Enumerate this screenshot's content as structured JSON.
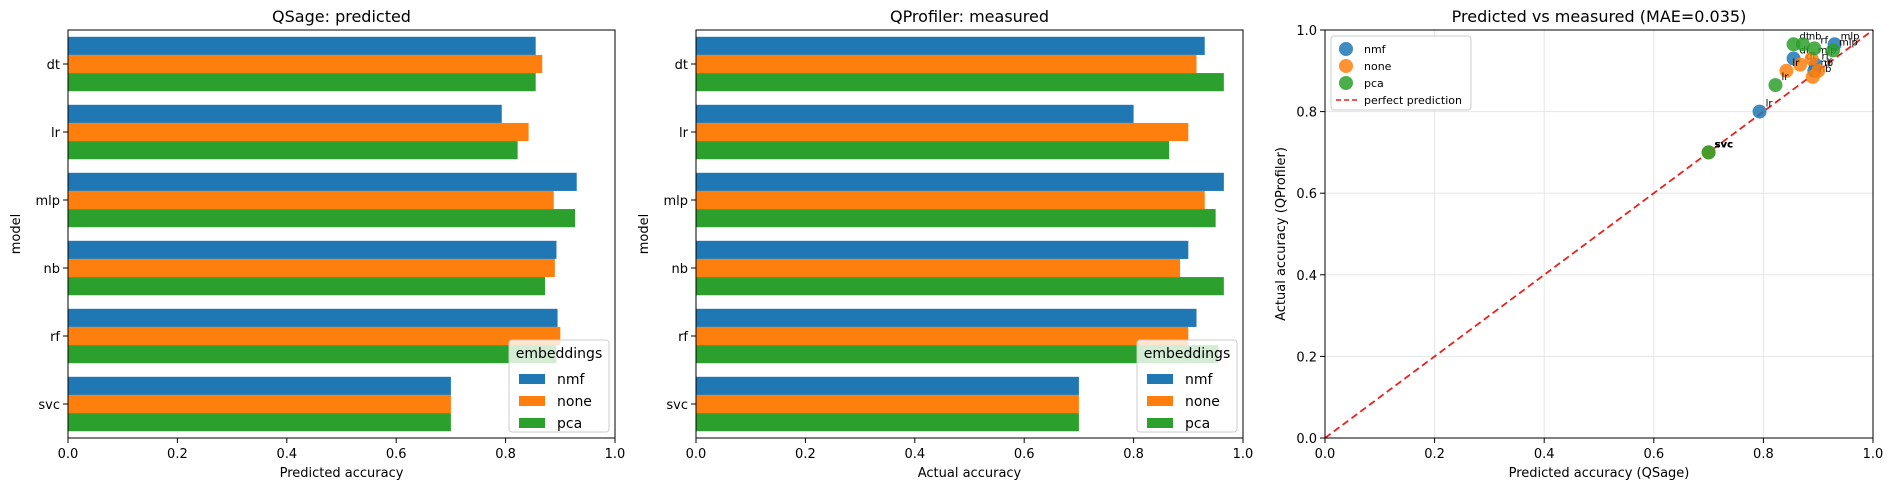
{
  "colors": {
    "nmf": "#1f77b4",
    "none": "#ff7f0e",
    "pca": "#2ca02c",
    "perfect": "#e8211f"
  },
  "chart_data": [
    {
      "type": "bar",
      "orientation": "horizontal",
      "title": "QSage: predicted",
      "xlabel": "Predicted accuracy",
      "ylabel": "model",
      "xlim": [
        0,
        1
      ],
      "xticks": [
        "0.0",
        "0.2",
        "0.4",
        "0.6",
        "0.8",
        "1.0"
      ],
      "categories": [
        "dt",
        "lr",
        "mlp",
        "nb",
        "rf",
        "svc"
      ],
      "series": [
        {
          "name": "nmf",
          "values": [
            0.855,
            0.793,
            0.93,
            0.893,
            0.895,
            0.7
          ]
        },
        {
          "name": "none",
          "values": [
            0.867,
            0.842,
            0.888,
            0.89,
            0.9,
            0.7
          ]
        },
        {
          "name": "pca",
          "values": [
            0.855,
            0.822,
            0.927,
            0.872,
            0.893,
            0.7
          ]
        }
      ],
      "legend": {
        "title": "embeddings",
        "position": "lower-right"
      }
    },
    {
      "type": "bar",
      "orientation": "horizontal",
      "title": "QProfiler: measured",
      "xlabel": "Actual accuracy",
      "ylabel": "model",
      "xlim": [
        0,
        1
      ],
      "xticks": [
        "0.0",
        "0.2",
        "0.4",
        "0.6",
        "0.8",
        "1.0"
      ],
      "categories": [
        "dt",
        "lr",
        "mlp",
        "nb",
        "rf",
        "svc"
      ],
      "series": [
        {
          "name": "nmf",
          "values": [
            0.93,
            0.8,
            0.965,
            0.9,
            0.915,
            0.7
          ]
        },
        {
          "name": "none",
          "values": [
            0.915,
            0.9,
            0.93,
            0.885,
            0.9,
            0.7
          ]
        },
        {
          "name": "pca",
          "values": [
            0.965,
            0.865,
            0.95,
            0.965,
            0.955,
            0.7
          ]
        }
      ],
      "legend": {
        "title": "embeddings",
        "position": "lower-right"
      }
    },
    {
      "type": "scatter",
      "title": "Predicted vs measured (MAE=0.035)",
      "xlabel": "Predicted accuracy (QSage)",
      "ylabel": "Actual accuracy (QProfiler)",
      "xlim": [
        0,
        1
      ],
      "ylim": [
        0,
        1
      ],
      "xticks": [
        "0.0",
        "0.2",
        "0.4",
        "0.6",
        "0.8",
        "1.0"
      ],
      "yticks": [
        "0.0",
        "0.2",
        "0.4",
        "0.6",
        "0.8",
        "1.0"
      ],
      "grid": true,
      "series": [
        {
          "name": "nmf",
          "points": [
            {
              "label": "dt",
              "x": 0.855,
              "y": 0.93
            },
            {
              "label": "lr",
              "x": 0.793,
              "y": 0.8
            },
            {
              "label": "mlp",
              "x": 0.93,
              "y": 0.965
            },
            {
              "label": "nb",
              "x": 0.893,
              "y": 0.9
            },
            {
              "label": "rf",
              "x": 0.895,
              "y": 0.915
            },
            {
              "label": "svc",
              "x": 0.7,
              "y": 0.7
            }
          ]
        },
        {
          "name": "none",
          "points": [
            {
              "label": "dt",
              "x": 0.867,
              "y": 0.915
            },
            {
              "label": "lr",
              "x": 0.842,
              "y": 0.9
            },
            {
              "label": "mlp",
              "x": 0.888,
              "y": 0.93
            },
            {
              "label": "nb",
              "x": 0.89,
              "y": 0.885
            },
            {
              "label": "rf",
              "x": 0.9,
              "y": 0.9
            },
            {
              "label": "svc",
              "x": 0.7,
              "y": 0.7
            }
          ]
        },
        {
          "name": "pca",
          "points": [
            {
              "label": "dt",
              "x": 0.855,
              "y": 0.965
            },
            {
              "label": "lr",
              "x": 0.822,
              "y": 0.865
            },
            {
              "label": "mlp",
              "x": 0.927,
              "y": 0.95
            },
            {
              "label": "nb",
              "x": 0.872,
              "y": 0.965
            },
            {
              "label": "rf",
              "x": 0.893,
              "y": 0.955
            },
            {
              "label": "svc",
              "x": 0.7,
              "y": 0.7
            }
          ]
        }
      ],
      "reference_line": {
        "label": "perfect prediction",
        "from": [
          0,
          0
        ],
        "to": [
          1,
          1
        ],
        "style": "dashed"
      },
      "legend": {
        "position": "top-left"
      }
    }
  ]
}
